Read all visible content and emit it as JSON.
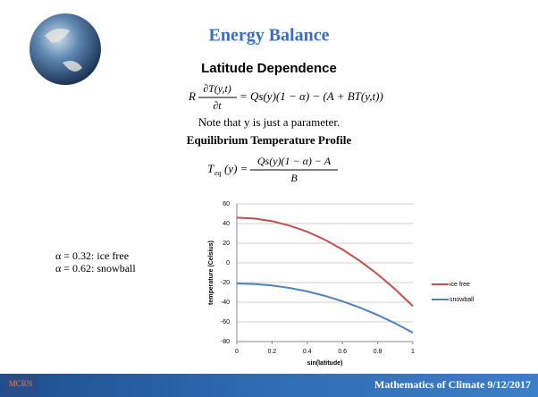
{
  "slide": {
    "title": "Energy Balance",
    "subtitle": "Latitude Dependence",
    "eq1": {
      "lhs": "R",
      "num": "∂T(y,t)",
      "den": "∂t",
      "rhs": "= Qs(y)(1 − α) − (A + BT(y,t))"
    },
    "note": "Note that y is just a parameter.",
    "heading": "Equilibrium Temperature Profile",
    "eq2": {
      "lhs": "T",
      "sub": "eq",
      "lhs2": "(y) =",
      "num": "Qs(y)(1 − α) − A",
      "den": "B"
    },
    "cases": [
      "α = 0.32:  ice free",
      "α = 0.62:  snowball"
    ],
    "logo": "MCRN",
    "footer": "Mathematics of Climate  9/12/2017"
  },
  "chart_data": {
    "type": "line",
    "x": [
      0,
      0.1,
      0.2,
      0.3,
      0.4,
      0.5,
      0.6,
      0.7,
      0.8,
      0.9,
      1
    ],
    "series": [
      {
        "name": "ice free",
        "color": "#c0504d",
        "values": [
          46,
          45.1,
          42.4,
          37.9,
          31.6,
          23.5,
          13.6,
          1.9,
          -11.6,
          -26.9,
          -44
        ]
      },
      {
        "name": "snowball",
        "color": "#4f81bd",
        "values": [
          -21,
          -21.5,
          -23,
          -25.5,
          -29,
          -33.5,
          -39,
          -45.5,
          -53,
          -61.5,
          -71
        ]
      }
    ],
    "xlabel": "sin(latitude)",
    "ylabel": "temperature (Celsius)",
    "xlim": [
      0,
      1
    ],
    "xticks": [
      0,
      0.2,
      0.4,
      0.6,
      0.8,
      1
    ],
    "ylim": [
      -80,
      60
    ],
    "yticks": [
      -80,
      -60,
      -40,
      -20,
      0,
      20,
      40,
      60
    ],
    "grid": true,
    "legend": "right"
  }
}
